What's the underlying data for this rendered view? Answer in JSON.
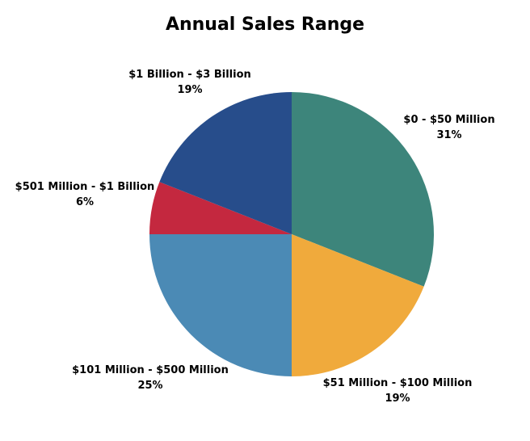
{
  "chart_data": {
    "type": "pie",
    "title": "Annual Sales Range",
    "categories": [
      "$0 - $50 Million",
      "$51 Million - $100 Million",
      "$101 Million - $500 Million",
      "$501 Million - $1 Billion",
      "$1 Billion - $3 Billion"
    ],
    "values": [
      31,
      19,
      25,
      6,
      19
    ],
    "value_labels": [
      "31%",
      "19%",
      "25%",
      "6%",
      "19%"
    ],
    "colors": [
      "#3d857b",
      "#f0aa3c",
      "#4b8ab5",
      "#c4283f",
      "#274d8b"
    ],
    "start": "12 o'clock",
    "direction": "clockwise",
    "legend": "none",
    "labels": "outside slices"
  }
}
